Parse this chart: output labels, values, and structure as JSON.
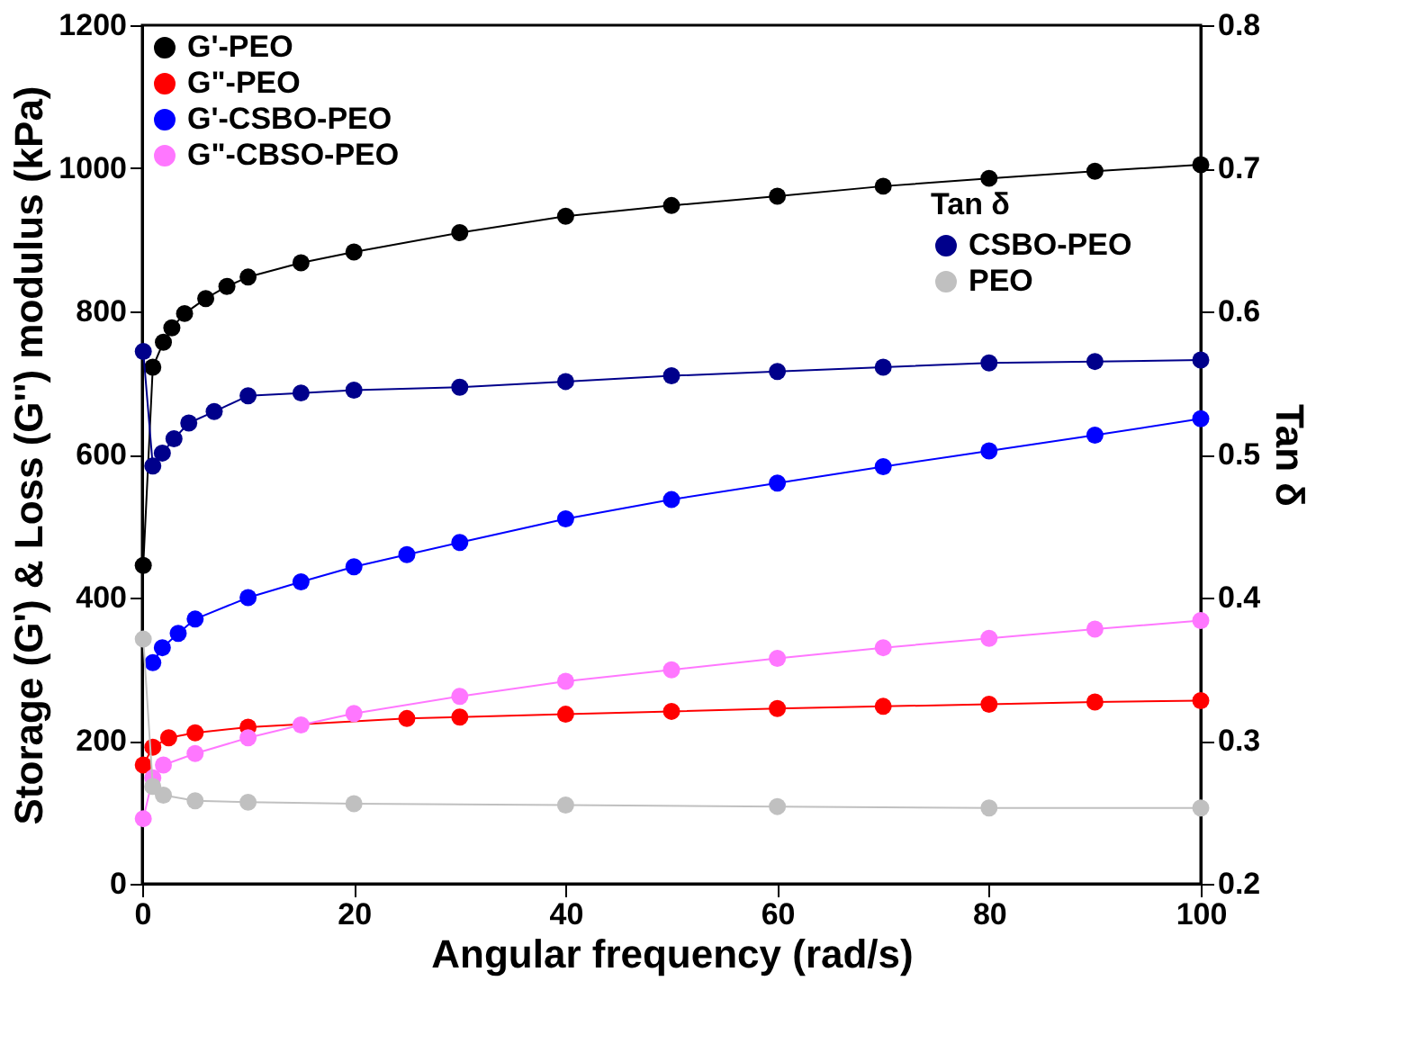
{
  "chart_data": {
    "type": "line",
    "xlabel": "Angular frequency (rad/s)",
    "ylabel": "Storage (G') & Loss (G'') modulus (kPa)",
    "y2label": "Tan δ",
    "legend_title": "Tan δ",
    "xlim": [
      0,
      100
    ],
    "xticks": [
      0,
      20,
      40,
      60,
      80,
      100
    ],
    "ylim": [
      0,
      1200
    ],
    "yticks": [
      0,
      200,
      400,
      600,
      800,
      1000,
      1200
    ],
    "y2lim": [
      0.2,
      0.8
    ],
    "y2ticks": [
      0.2,
      0.3,
      0.4,
      0.5,
      0.6,
      0.7,
      0.8
    ],
    "grid": false,
    "legend": "top left",
    "marker": "circle",
    "line_style": "solid",
    "series": [
      {
        "name": "G'-PEO",
        "color": "#000000",
        "x": [
          0.1,
          1,
          2,
          2.8,
          4,
          6,
          8,
          10,
          15,
          20,
          30,
          40,
          50,
          60,
          70,
          80,
          90,
          100
        ],
        "values": [
          445,
          722,
          757,
          777,
          797,
          818,
          835,
          848,
          868,
          883,
          910,
          933,
          948,
          961,
          975,
          986,
          996,
          1005
        ]
      },
      {
        "name": "G\"-PEO",
        "color": "#ff0000",
        "x": [
          0.1,
          1,
          2.5,
          5,
          10,
          25,
          30,
          40,
          50,
          60,
          70,
          80,
          90,
          100
        ],
        "values": [
          166,
          191,
          204,
          211,
          219,
          231,
          233,
          237,
          241,
          245,
          248,
          251,
          254,
          256
        ]
      },
      {
        "name": "G'-CSBO-PEO",
        "color": "#0000ff",
        "x": [
          1,
          1.9,
          3.4,
          5,
          10,
          15,
          20,
          25,
          30,
          40,
          50,
          60,
          70,
          80,
          90,
          100
        ],
        "values": [
          309,
          330,
          350,
          370,
          400,
          422,
          443,
          460,
          477,
          510,
          537,
          560,
          583,
          605,
          627,
          650
        ]
      },
      {
        "name": "G\"-CBSO-PEO",
        "color": "#ff77ff",
        "x": [
          0.1,
          1,
          2,
          5,
          10,
          15,
          20,
          30,
          40,
          50,
          60,
          70,
          80,
          90,
          100
        ],
        "values": [
          91,
          148,
          166,
          182,
          204,
          222,
          238,
          262,
          283,
          299,
          315,
          330,
          343,
          356,
          368
        ]
      },
      {
        "name": "CSBO-PEO",
        "color": "#00008b",
        "axis": "y2",
        "x": [
          0.1,
          1,
          1.9,
          3,
          4.4,
          6.8,
          10,
          15,
          20,
          30,
          40,
          50,
          60,
          70,
          80,
          90,
          100
        ],
        "values": [
          0.572,
          0.492,
          0.501,
          0.511,
          0.522,
          0.53,
          0.541,
          0.543,
          0.545,
          0.547,
          0.551,
          0.555,
          0.558,
          0.561,
          0.564,
          0.565,
          0.566
        ]
      },
      {
        "name": "PEO",
        "color": "#c0c0c0",
        "axis": "y2",
        "x": [
          0.1,
          1,
          2,
          5,
          10,
          20,
          40,
          60,
          80,
          100
        ],
        "values": [
          0.371,
          0.268,
          0.262,
          0.258,
          0.257,
          0.256,
          0.255,
          0.254,
          0.253,
          0.253
        ]
      }
    ]
  }
}
